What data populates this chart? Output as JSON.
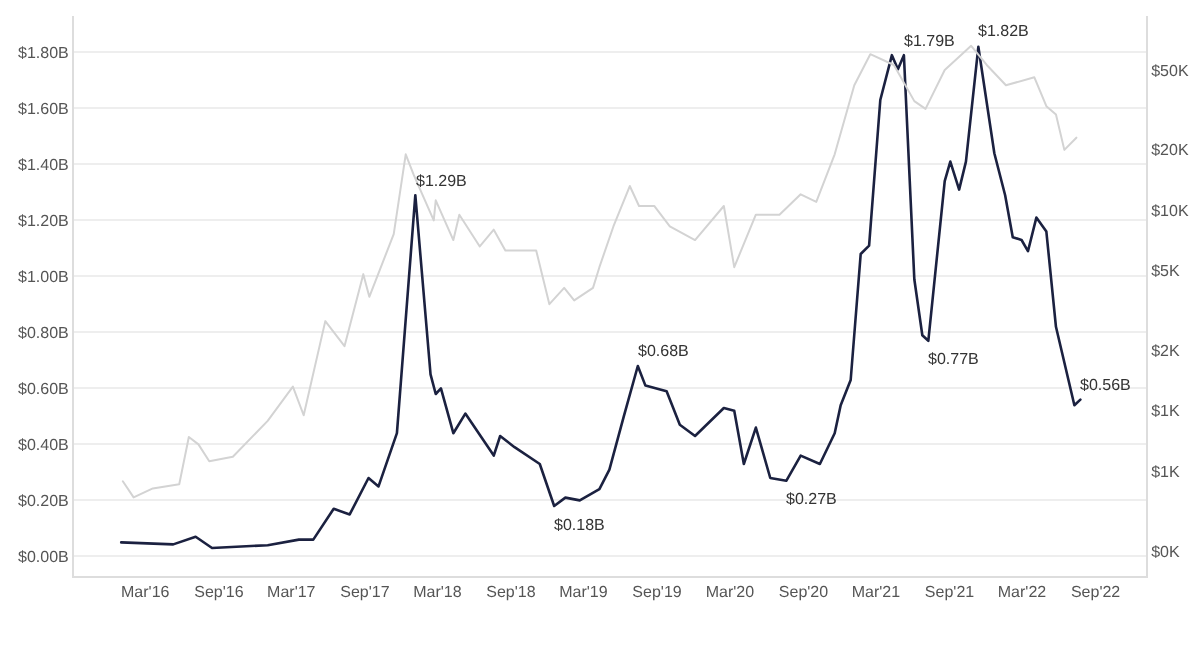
{
  "chart_data": {
    "type": "line",
    "xlim": [
      "2015-09-05",
      "2023-01-05"
    ],
    "xticks": [
      {
        "value": "2016-03-01",
        "label": "Mar'16"
      },
      {
        "value": "2016-09-01",
        "label": "Sep'16"
      },
      {
        "value": "2017-03-01",
        "label": "Mar'17"
      },
      {
        "value": "2017-09-01",
        "label": "Sep'17"
      },
      {
        "value": "2018-03-01",
        "label": "Mar'18"
      },
      {
        "value": "2018-09-01",
        "label": "Sep'18"
      },
      {
        "value": "2019-03-01",
        "label": "Mar'19"
      },
      {
        "value": "2019-09-01",
        "label": "Sep'19"
      },
      {
        "value": "2020-03-01",
        "label": "Mar'20"
      },
      {
        "value": "2020-09-01",
        "label": "Sep'20"
      },
      {
        "value": "2021-03-01",
        "label": "Mar'21"
      },
      {
        "value": "2021-09-01",
        "label": "Sep'21"
      },
      {
        "value": "2022-03-01",
        "label": "Mar'22"
      },
      {
        "value": "2022-09-01",
        "label": "Sep'22"
      }
    ],
    "ylim": [
      -0.07,
      1.93
    ],
    "yticks": [
      {
        "value": 0,
        "label": "$0.00B"
      },
      {
        "value": 0.2,
        "label": "$0.20B"
      },
      {
        "value": 0.4,
        "label": "$0.40B"
      },
      {
        "value": 0.6,
        "label": "$0.60B"
      },
      {
        "value": 0.8,
        "label": "$0.80B"
      },
      {
        "value": 1.0,
        "label": "$1.00B"
      },
      {
        "value": 1.2,
        "label": "$1.20B"
      },
      {
        "value": 1.4,
        "label": "$1.40B"
      },
      {
        "value": 1.6,
        "label": "$1.60B"
      },
      {
        "value": 1.8,
        "label": "$1.80B"
      }
    ],
    "y2lim": [
      150,
      93000
    ],
    "y2ticks": [
      {
        "value": 200,
        "label": "$0K"
      },
      {
        "value": 500,
        "label": "$1K"
      },
      {
        "value": 1000,
        "label": "$1K"
      },
      {
        "value": 2000,
        "label": "$2K"
      },
      {
        "value": 5000,
        "label": "$5K"
      },
      {
        "value": 10000,
        "label": "$10K"
      },
      {
        "value": 20000,
        "label": "$20K"
      },
      {
        "value": 50000,
        "label": "$50K"
      }
    ],
    "log": "y2",
    "grid": "y",
    "marker": "none",
    "line_style": "solid",
    "series": [
      {
        "axis": "y2",
        "color": "#d3d3d3",
        "x": [
          "2016-01-05",
          "2016-02-01",
          "2016-03-20",
          "2016-05-25",
          "2016-06-18",
          "2016-07-12",
          "2016-08-08",
          "2016-10-06",
          "2017-01-01",
          "2017-03-05",
          "2017-04-01",
          "2017-05-25",
          "2017-07-12",
          "2017-08-28",
          "2017-09-12",
          "2017-11-12",
          "2017-12-12",
          "2018-01-01",
          "2018-02-20",
          "2018-02-25",
          "2018-04-10",
          "2018-04-25",
          "2018-06-15",
          "2018-07-20",
          "2018-08-18",
          "2018-11-03",
          "2018-12-06",
          "2019-01-12",
          "2019-02-06",
          "2019-03-25",
          "2019-04-10",
          "2019-05-15",
          "2019-06-25",
          "2019-07-18",
          "2019-08-25",
          "2019-10-03",
          "2019-12-05",
          "2020-02-15",
          "2020-03-12",
          "2020-05-05",
          "2020-07-03",
          "2020-08-25",
          "2020-10-03",
          "2020-11-18",
          "2021-01-06",
          "2021-02-15",
          "2021-04-15",
          "2021-06-05",
          "2021-07-03",
          "2021-08-20",
          "2021-10-25",
          "2021-12-03",
          "2022-01-20",
          "2022-04-01",
          "2022-05-01",
          "2022-05-25",
          "2022-06-15",
          "2022-07-15"
        ],
        "values": [
          445,
          370,
          410,
          430,
          740,
          680,
          560,
          590,
          890,
          1320,
          950,
          2800,
          2100,
          4800,
          3700,
          7600,
          19000,
          15000,
          8900,
          11200,
          7100,
          9500,
          6600,
          8000,
          6300,
          6300,
          3400,
          4100,
          3550,
          4100,
          5200,
          8300,
          13200,
          10500,
          10500,
          8300,
          7100,
          10500,
          5200,
          9500,
          9500,
          12000,
          11000,
          19000,
          42000,
          60000,
          53000,
          35000,
          32000,
          50000,
          66000,
          53000,
          42000,
          46000,
          33000,
          30000,
          20000,
          23000
        ]
      },
      {
        "color": "#1b2140",
        "x": [
          "2016-01-01",
          "2016-05-10",
          "2016-07-05",
          "2016-08-15",
          "2017-01-01",
          "2017-03-20",
          "2017-04-25",
          "2017-06-15",
          "2017-07-25",
          "2017-09-10",
          "2017-10-05",
          "2017-11-20",
          "2018-01-05",
          "2018-02-12",
          "2018-02-25",
          "2018-03-10",
          "2018-04-10",
          "2018-05-10",
          "2018-07-20",
          "2018-08-05",
          "2018-09-10",
          "2018-11-12",
          "2018-12-18",
          "2019-01-15",
          "2019-02-20",
          "2019-04-10",
          "2019-05-05",
          "2019-06-10",
          "2019-07-15",
          "2019-08-03",
          "2019-09-25",
          "2019-10-28",
          "2019-12-05",
          "2020-02-15",
          "2020-03-12",
          "2020-04-05",
          "2020-05-05",
          "2020-06-10",
          "2020-07-20",
          "2020-08-25",
          "2020-10-12",
          "2020-11-18",
          "2020-12-03",
          "2020-12-28",
          "2021-01-22",
          "2021-02-12",
          "2021-03-12",
          "2021-04-10",
          "2021-04-25",
          "2021-05-10",
          "2021-06-05",
          "2021-06-25",
          "2021-07-10",
          "2021-08-20",
          "2021-09-03",
          "2021-09-25",
          "2021-10-12",
          "2021-11-12",
          "2021-12-22",
          "2022-01-18",
          "2022-02-06",
          "2022-02-28",
          "2022-03-16",
          "2022-04-06",
          "2022-05-01",
          "2022-05-25",
          "2022-07-10",
          "2022-07-25"
        ],
        "values": [
          0.05,
          0.043,
          0.07,
          0.03,
          0.04,
          0.06,
          0.06,
          0.17,
          0.15,
          0.28,
          0.25,
          0.44,
          1.29,
          0.65,
          0.58,
          0.6,
          0.44,
          0.51,
          0.36,
          0.43,
          0.39,
          0.33,
          0.18,
          0.21,
          0.2,
          0.24,
          0.31,
          0.5,
          0.68,
          0.61,
          0.59,
          0.47,
          0.43,
          0.53,
          0.52,
          0.33,
          0.46,
          0.28,
          0.27,
          0.36,
          0.33,
          0.44,
          0.54,
          0.63,
          1.08,
          1.11,
          1.63,
          1.79,
          1.74,
          1.79,
          0.99,
          0.79,
          0.77,
          1.34,
          1.41,
          1.31,
          1.41,
          1.82,
          1.44,
          1.29,
          1.14,
          1.13,
          1.09,
          1.21,
          1.16,
          0.82,
          0.54,
          0.56
        ]
      }
    ],
    "annotations": [
      {
        "text": "$1.29B",
        "x": "2018-01-05",
        "y": 1.29
      },
      {
        "text": "$0.18B",
        "x": "2018-12-18",
        "y": 0.18
      },
      {
        "text": "$0.68B",
        "x": "2019-07-15",
        "y": 0.68
      },
      {
        "text": "$0.27B",
        "x": "2020-07-20",
        "y": 0.27
      },
      {
        "text": "$1.79B",
        "x": "2021-05-10",
        "y": 1.79
      },
      {
        "text": "$0.77B",
        "x": "2021-07-10",
        "y": 0.77
      },
      {
        "text": "$1.82B",
        "x": "2021-11-12",
        "y": 1.82
      },
      {
        "text": "$0.56B",
        "x": "2022-07-25",
        "y": 0.56
      }
    ]
  }
}
